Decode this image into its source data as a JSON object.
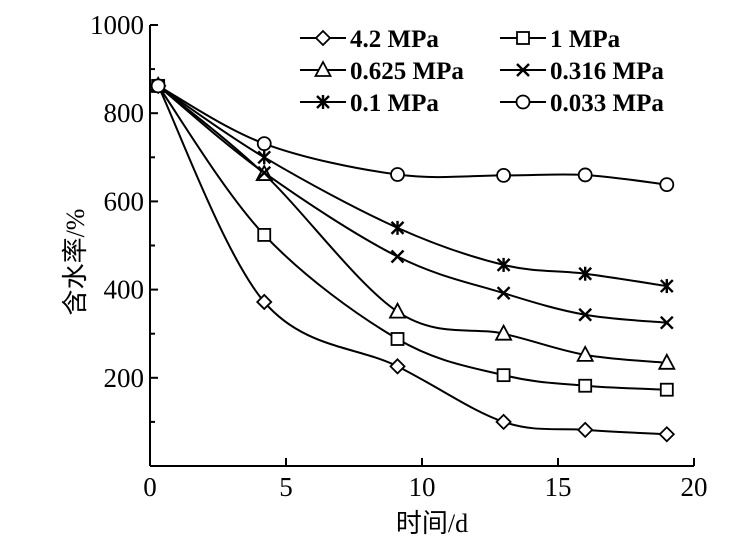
{
  "chart_data": {
    "type": "line",
    "title": "",
    "xlabel": "时间/d",
    "ylabel": "含水率/%",
    "xlim": [
      0,
      20
    ],
    "ylim": [
      0,
      1000
    ],
    "xticks": [
      0,
      5,
      10,
      15,
      20
    ],
    "yticks": [
      200,
      400,
      600,
      800,
      1000
    ],
    "legend_position": "top-right",
    "series": [
      {
        "name": "4.2 MPa",
        "marker": "diamond",
        "x": [
          0.3,
          4.2,
          9.1,
          13,
          16,
          19
        ],
        "values": [
          862,
          372,
          226,
          100,
          82,
          72
        ]
      },
      {
        "name": "1 MPa",
        "marker": "square",
        "x": [
          0.3,
          4.2,
          9.1,
          13,
          16,
          19
        ],
        "values": [
          862,
          524,
          288,
          206,
          182,
          173
        ]
      },
      {
        "name": "0.625 MPa",
        "marker": "triangle",
        "x": [
          0.3,
          4.2,
          9.1,
          13,
          16,
          19
        ],
        "values": [
          862,
          662,
          350,
          300,
          252,
          234
        ]
      },
      {
        "name": "0.316 MPa",
        "marker": "x",
        "x": [
          0.3,
          4.2,
          9.1,
          13,
          16,
          19
        ],
        "values": [
          862,
          665,
          475,
          392,
          343,
          325
        ]
      },
      {
        "name": "0.1 MPa",
        "marker": "star",
        "x": [
          0.3,
          4.2,
          9.1,
          13,
          16,
          19
        ],
        "values": [
          862,
          700,
          540,
          456,
          436,
          408
        ]
      },
      {
        "name": "0.033 MPa",
        "marker": "circle",
        "x": [
          0.3,
          4.2,
          9.1,
          13,
          16,
          19
        ],
        "values": [
          862,
          731,
          661,
          659,
          660,
          638
        ]
      }
    ]
  }
}
